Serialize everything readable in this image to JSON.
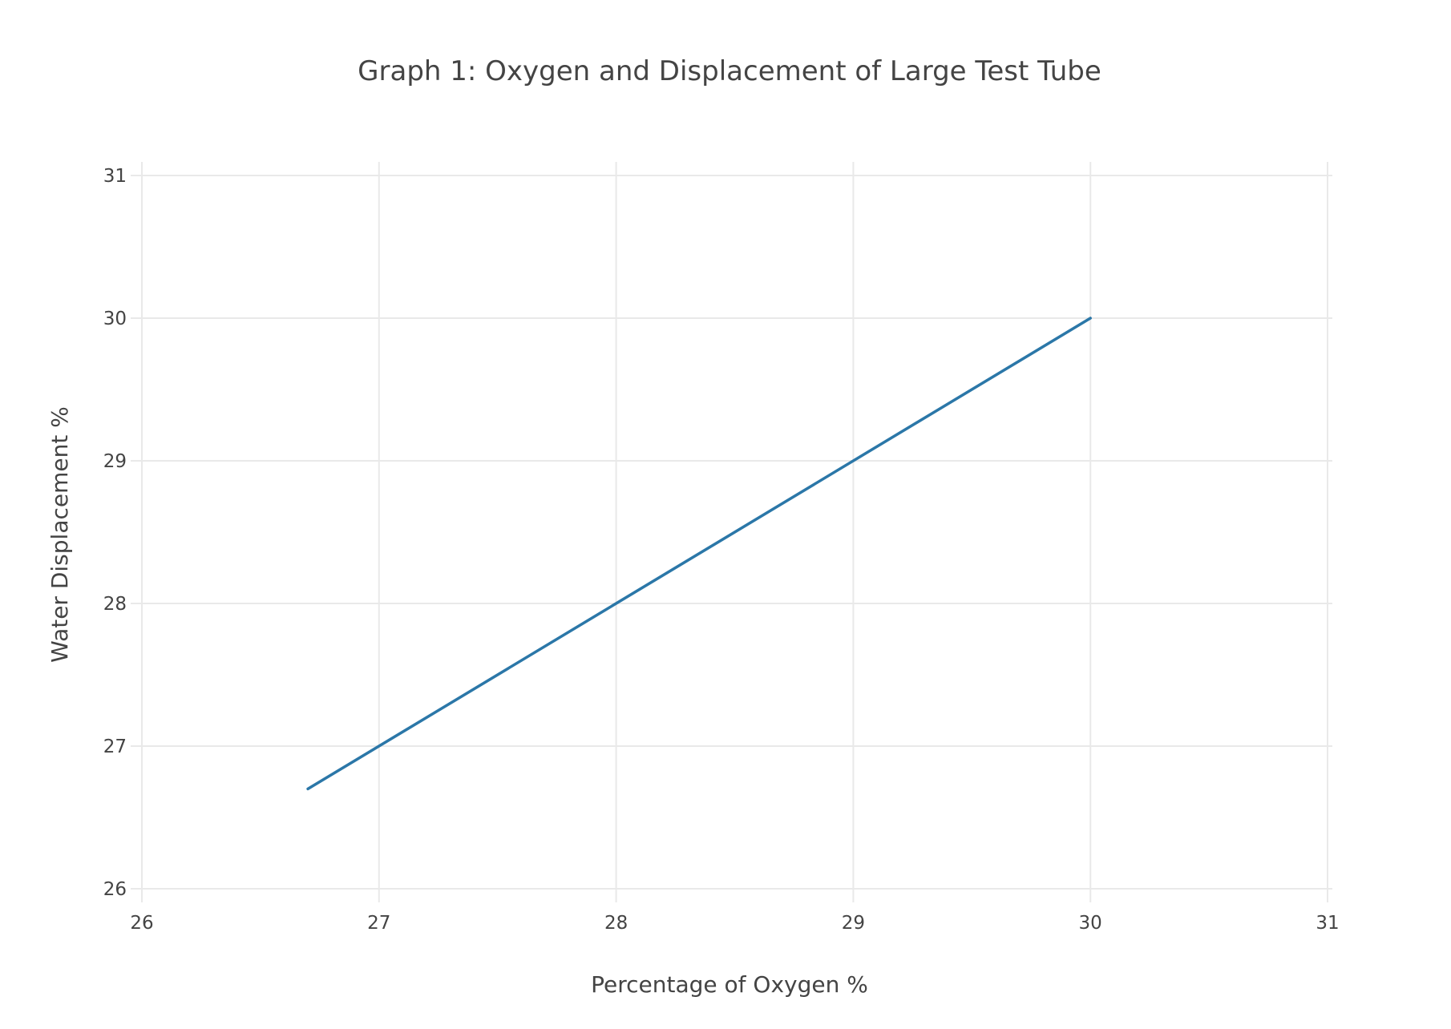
{
  "chart_data": {
    "type": "line",
    "title": "Graph 1:  Oxygen and Displacement of Large Test Tube",
    "xlabel": "Percentage of Oxygen %",
    "ylabel": "Water Displacement %",
    "xlim": [
      26,
      31
    ],
    "ylim": [
      26,
      31
    ],
    "x_ticks": [
      "26",
      "27",
      "28",
      "29",
      "30",
      "31"
    ],
    "y_ticks": [
      "26",
      "27",
      "28",
      "29",
      "30",
      "31"
    ],
    "grid": true,
    "series": [
      {
        "x": [
          26.7,
          30
        ],
        "y": [
          26.7,
          30
        ],
        "color": "#2b77a8"
      }
    ]
  }
}
